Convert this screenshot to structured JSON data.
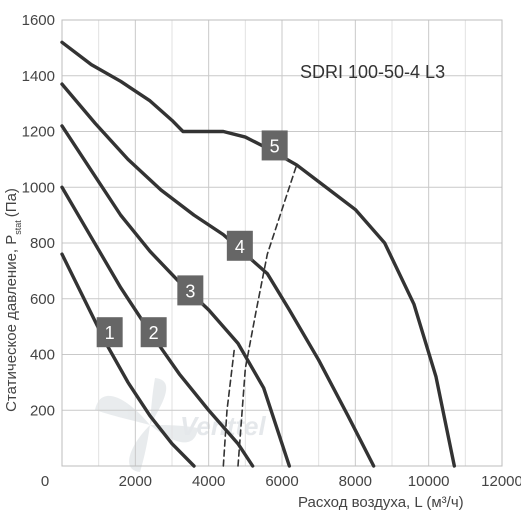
{
  "chart_data": {
    "type": "line",
    "title": "SDRI 100-50-4 L3",
    "xlabel": "Расход воздуха, L (м³/ч)",
    "ylabel": "Статическое давление, P",
    "ylabel_sub": "stat",
    "ylabel_unit": "(Па)",
    "xlim": [
      0,
      12000
    ],
    "ylim": [
      0,
      1600
    ],
    "xticks": [
      0,
      2000,
      4000,
      6000,
      8000,
      10000,
      12000
    ],
    "yticks": [
      0,
      200,
      400,
      600,
      800,
      1000,
      1200,
      1400,
      1600
    ],
    "grid": true,
    "watermark": "Venttel",
    "series": [
      {
        "name": "1",
        "x": [
          0,
          600,
          1200,
          1800,
          2400,
          3000,
          3600
        ],
        "y": [
          760,
          600,
          440,
          300,
          180,
          80,
          0
        ]
      },
      {
        "name": "2",
        "x": [
          0,
          800,
          1600,
          2400,
          3200,
          4000,
          4800,
          5200
        ],
        "y": [
          1000,
          820,
          640,
          480,
          330,
          200,
          80,
          0
        ]
      },
      {
        "name": "3",
        "x": [
          0,
          800,
          1600,
          2400,
          3200,
          4000,
          4800,
          5500,
          6200
        ],
        "y": [
          1220,
          1060,
          900,
          770,
          660,
          560,
          440,
          280,
          0
        ]
      },
      {
        "name": "4",
        "x": [
          0,
          900,
          1800,
          2700,
          3600,
          4400,
          5000,
          5600,
          6200,
          7000,
          7800,
          8500
        ],
        "y": [
          1370,
          1230,
          1100,
          990,
          900,
          830,
          760,
          690,
          560,
          380,
          180,
          0
        ]
      },
      {
        "name": "5",
        "x": [
          0,
          800,
          1600,
          2400,
          3000,
          3300,
          3800,
          4400,
          5000,
          5600,
          6000,
          6400,
          7200,
          8000,
          8800,
          9600,
          10200,
          10700
        ],
        "y": [
          1520,
          1440,
          1380,
          1310,
          1240,
          1200,
          1200,
          1200,
          1180,
          1140,
          1110,
          1080,
          1000,
          920,
          800,
          580,
          320,
          0
        ]
      },
      {
        "name": "system",
        "x": [
          4800,
          5000,
          5300,
          5600,
          6000,
          6400
        ],
        "y": [
          0,
          350,
          560,
          760,
          920,
          1080
        ]
      },
      {
        "name": "system-left",
        "x": [
          4400,
          4500,
          4700
        ],
        "y": [
          0,
          200,
          420
        ]
      }
    ],
    "labels": [
      {
        "text": "1",
        "x": 1300,
        "y": 480
      },
      {
        "text": "2",
        "x": 2500,
        "y": 480
      },
      {
        "text": "3",
        "x": 3500,
        "y": 630
      },
      {
        "text": "4",
        "x": 4850,
        "y": 790
      },
      {
        "text": "5",
        "x": 5800,
        "y": 1150
      }
    ]
  }
}
